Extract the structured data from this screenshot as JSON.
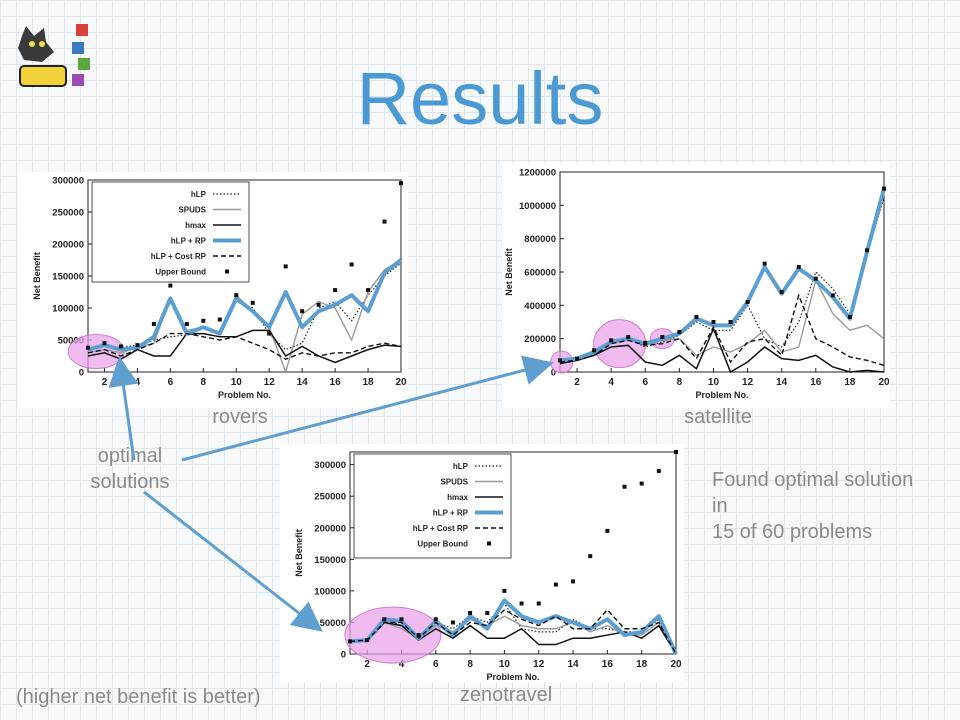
{
  "slide": {
    "title": "Results",
    "captions": {
      "rovers": "rovers",
      "satellite": "satellite",
      "zenotravel": "zenotravel"
    },
    "callout": {
      "line1": "optimal",
      "line2": "solutions"
    },
    "finding": {
      "line1": "Found optimal solution",
      "line2": "in",
      "line3": "15 of 60 problems"
    },
    "note": "(higher net benefit is better)"
  },
  "colors": {
    "accent": "#4a98d4",
    "highlight": "#e9a0ea",
    "grey_text": "#8a8a8a"
  },
  "chart_data": [
    {
      "id": "rovers",
      "type": "line",
      "xlabel": "Problem No.",
      "ylabel": "Net Benefit",
      "xlim": [
        1,
        20
      ],
      "ylim": [
        0,
        300000
      ],
      "xticks": [
        2,
        4,
        6,
        8,
        10,
        12,
        14,
        16,
        18,
        20
      ],
      "yticks": [
        0,
        50000,
        100000,
        150000,
        200000,
        250000,
        300000
      ],
      "x": [
        1,
        2,
        3,
        4,
        5,
        6,
        7,
        8,
        9,
        10,
        11,
        12,
        13,
        14,
        15,
        16,
        17,
        18,
        19,
        20
      ],
      "series": [
        {
          "name": "hLP",
          "style": "dotted",
          "values": [
            35000,
            40000,
            38000,
            42000,
            50000,
            55000,
            58000,
            60000,
            55000,
            110000,
            100000,
            60000,
            35000,
            45000,
            100000,
            110000,
            80000,
            120000,
            150000,
            170000
          ]
        },
        {
          "name": "SPUDS",
          "style": "grey",
          "values": [
            30000,
            35000,
            30000,
            38000,
            45000,
            115000,
            65000,
            70000,
            60000,
            120000,
            95000,
            70000,
            0,
            90000,
            110000,
            100000,
            50000,
            125000,
            160000,
            175000
          ]
        },
        {
          "name": "hmax",
          "style": "solid",
          "values": [
            25000,
            30000,
            20000,
            35000,
            25000,
            25000,
            60000,
            60000,
            55000,
            55000,
            65000,
            65000,
            25000,
            40000,
            25000,
            15000,
            25000,
            35000,
            42000,
            40000
          ]
        },
        {
          "name": "hLP + RP",
          "style": "thick",
          "values": [
            35000,
            42000,
            35000,
            38000,
            55000,
            115000,
            60000,
            70000,
            60000,
            115000,
            95000,
            70000,
            125000,
            70000,
            95000,
            105000,
            120000,
            95000,
            155000,
            175000
          ]
        },
        {
          "name": "hLP + Cost RP",
          "style": "dashed",
          "values": [
            30000,
            35000,
            25000,
            35000,
            45000,
            60000,
            60000,
            55000,
            50000,
            55000,
            45000,
            35000,
            20000,
            30000,
            25000,
            30000,
            30000,
            40000,
            45000,
            40000
          ]
        },
        {
          "name": "Upper Bound",
          "style": "points",
          "values": [
            38000,
            45000,
            40000,
            42000,
            75000,
            135000,
            75000,
            80000,
            82000,
            120000,
            108000,
            60000,
            165000,
            95000,
            105000,
            128000,
            168000,
            128000,
            235000,
            295000
          ]
        }
      ]
    },
    {
      "id": "satellite",
      "type": "line",
      "xlabel": "Problem No.",
      "ylabel": "Net Benefit",
      "xlim": [
        1,
        20
      ],
      "ylim": [
        0,
        1200000
      ],
      "xticks": [
        2,
        4,
        6,
        8,
        10,
        12,
        14,
        16,
        18,
        20
      ],
      "yticks": [
        0,
        200000,
        400000,
        600000,
        800000,
        1000000,
        1200000
      ],
      "x": [
        1,
        2,
        3,
        4,
        5,
        6,
        7,
        8,
        9,
        10,
        11,
        12,
        13,
        14,
        15,
        16,
        17,
        18,
        19,
        20
      ],
      "series": [
        {
          "name": "hLP",
          "style": "dotted",
          "values": [
            50000,
            80000,
            100000,
            180000,
            200000,
            150000,
            180000,
            220000,
            300000,
            250000,
            250000,
            400000,
            200000,
            150000,
            300000,
            600000,
            500000,
            350000,
            700000,
            1050000
          ]
        },
        {
          "name": "SPUDS",
          "style": "grey",
          "values": [
            60000,
            80000,
            120000,
            190000,
            200000,
            170000,
            190000,
            200000,
            100000,
            150000,
            120000,
            170000,
            250000,
            120000,
            150000,
            550000,
            350000,
            250000,
            280000,
            200000
          ]
        },
        {
          "name": "hmax",
          "style": "solid",
          "values": [
            50000,
            70000,
            100000,
            150000,
            160000,
            60000,
            40000,
            100000,
            20000,
            260000,
            0,
            60000,
            150000,
            80000,
            70000,
            100000,
            30000,
            0,
            10000,
            0
          ]
        },
        {
          "name": "hLP + RP",
          "style": "thick",
          "values": [
            70000,
            80000,
            120000,
            180000,
            200000,
            170000,
            200000,
            230000,
            320000,
            280000,
            280000,
            420000,
            630000,
            470000,
            620000,
            550000,
            450000,
            320000,
            720000,
            1100000
          ]
        },
        {
          "name": "hLP + Cost RP",
          "style": "dashed",
          "values": [
            60000,
            70000,
            100000,
            170000,
            190000,
            160000,
            170000,
            200000,
            80000,
            270000,
            60000,
            180000,
            200000,
            100000,
            460000,
            200000,
            150000,
            90000,
            70000,
            40000
          ]
        },
        {
          "name": "Upper Bound",
          "style": "points",
          "values": [
            70000,
            80000,
            130000,
            190000,
            210000,
            175000,
            210000,
            240000,
            330000,
            300000,
            300000,
            420000,
            650000,
            480000,
            630000,
            560000,
            460000,
            330000,
            730000,
            1100000
          ]
        }
      ]
    },
    {
      "id": "zenotravel",
      "type": "line",
      "xlabel": "Problem No.",
      "ylabel": "Net Benefit",
      "xlim": [
        1,
        20
      ],
      "ylim": [
        0,
        320000
      ],
      "xticks": [
        2,
        4,
        6,
        8,
        10,
        12,
        14,
        16,
        18,
        20
      ],
      "yticks": [
        0,
        50000,
        100000,
        150000,
        200000,
        250000,
        300000
      ],
      "x": [
        1,
        2,
        3,
        4,
        5,
        6,
        7,
        8,
        9,
        10,
        11,
        12,
        13,
        14,
        15,
        16,
        17,
        18,
        19,
        20
      ],
      "series": [
        {
          "name": "hLP",
          "style": "dotted",
          "values": [
            20000,
            22000,
            55000,
            45000,
            25000,
            50000,
            40000,
            60000,
            50000,
            80000,
            40000,
            35000,
            35000,
            55000,
            40000,
            40000,
            35000,
            35000,
            55000,
            0
          ]
        },
        {
          "name": "SPUDS",
          "style": "grey",
          "values": [
            20000,
            22000,
            50000,
            40000,
            25000,
            45000,
            35000,
            55000,
            45000,
            60000,
            45000,
            40000,
            40000,
            50000,
            35000,
            45000,
            30000,
            30000,
            50000,
            0
          ]
        },
        {
          "name": "hmax",
          "style": "solid",
          "values": [
            20000,
            20000,
            50000,
            45000,
            22000,
            40000,
            25000,
            45000,
            25000,
            25000,
            40000,
            15000,
            15000,
            25000,
            25000,
            30000,
            35000,
            25000,
            45000,
            0
          ]
        },
        {
          "name": "hLP + RP",
          "style": "thick",
          "values": [
            20000,
            22000,
            55000,
            52000,
            25000,
            52000,
            30000,
            60000,
            40000,
            85000,
            60000,
            50000,
            60000,
            50000,
            40000,
            55000,
            30000,
            35000,
            60000,
            0
          ]
        },
        {
          "name": "hLP + Cost RP",
          "style": "dashed",
          "values": [
            20000,
            22000,
            50000,
            50000,
            25000,
            50000,
            30000,
            50000,
            45000,
            70000,
            55000,
            45000,
            60000,
            40000,
            40000,
            70000,
            40000,
            40000,
            50000,
            0
          ]
        },
        {
          "name": "Upper Bound",
          "style": "points",
          "values": [
            20000,
            22000,
            55000,
            55000,
            30000,
            55000,
            50000,
            65000,
            65000,
            100000,
            80000,
            80000,
            110000,
            115000,
            155000,
            195000,
            265000,
            270000,
            290000,
            320000
          ]
        }
      ]
    }
  ]
}
